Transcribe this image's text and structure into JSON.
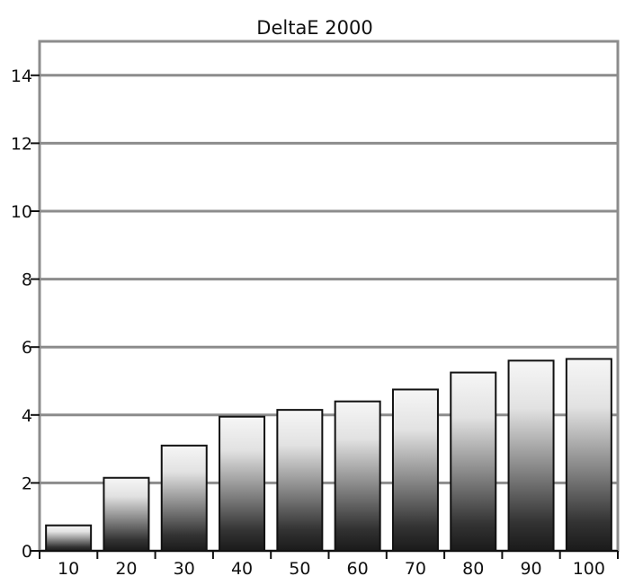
{
  "chart_data": {
    "type": "bar",
    "title": "DeltaE 2000",
    "xlabel": "",
    "ylabel": "",
    "categories": [
      "10",
      "20",
      "30",
      "40",
      "50",
      "60",
      "70",
      "80",
      "90",
      "100"
    ],
    "values": [
      0.75,
      2.15,
      3.1,
      3.95,
      4.15,
      4.4,
      4.75,
      5.25,
      5.6,
      5.65
    ],
    "ylim": [
      0,
      15
    ],
    "yticks": [
      0,
      2,
      4,
      6,
      8,
      10,
      12,
      14
    ],
    "grid": true,
    "legend": "none"
  }
}
